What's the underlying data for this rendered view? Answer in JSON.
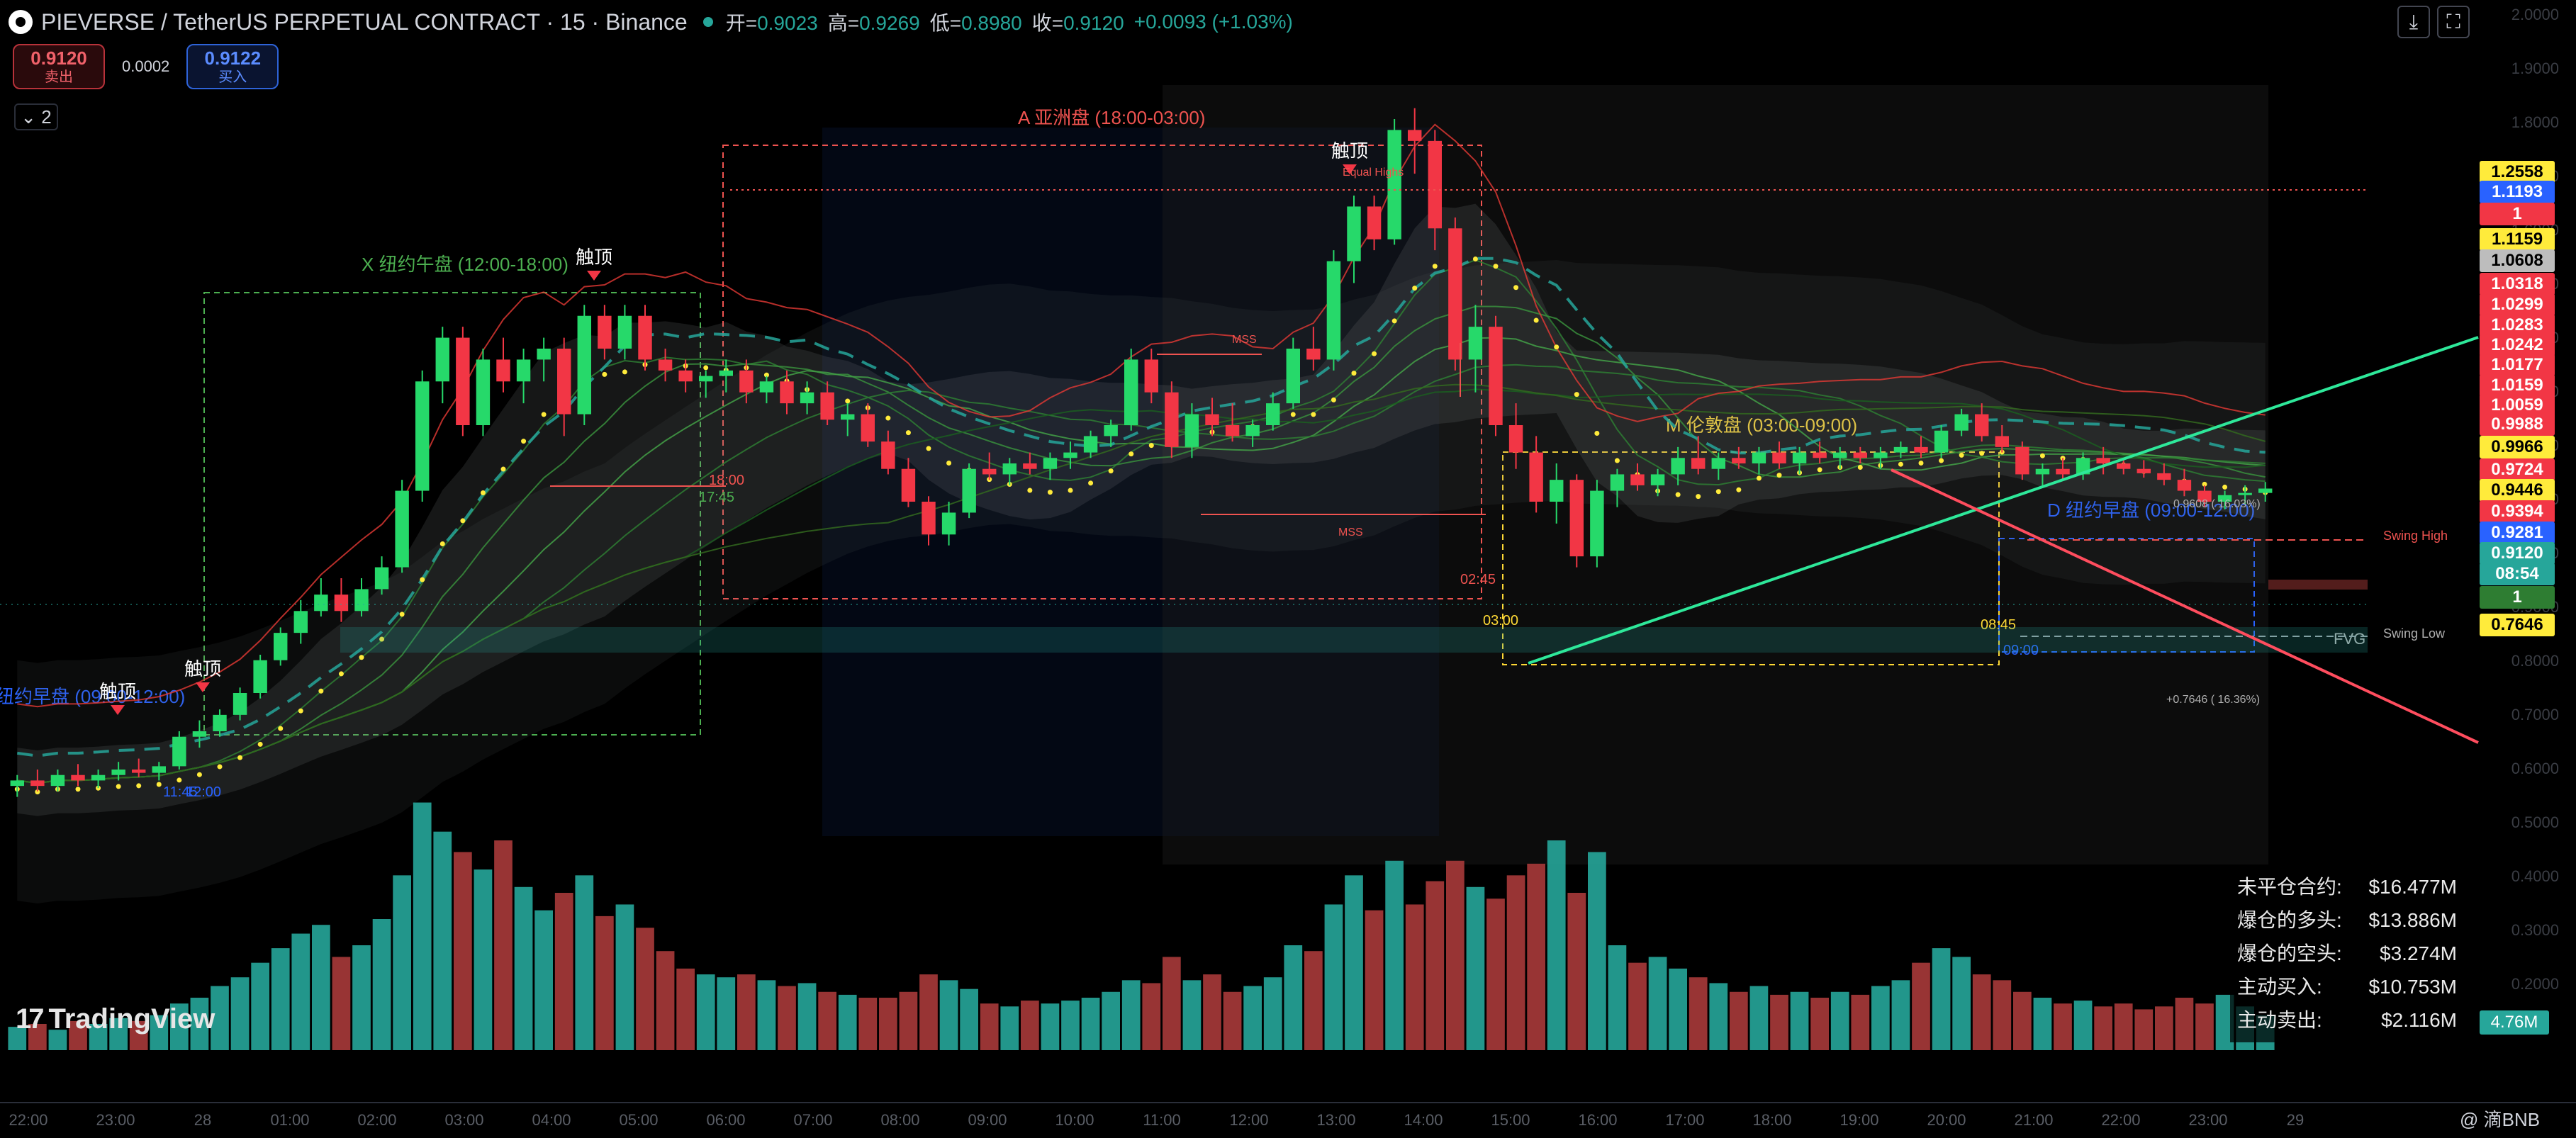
{
  "header": {
    "symbol": "PIEVERSE / TetherUS PERPETUAL CONTRACT · 15 · Binance",
    "open_label": "开=",
    "open": "0.9023",
    "high_label": "高=",
    "high": "0.9269",
    "low_label": "低=",
    "low": "0.8980",
    "close_label": "收=",
    "close": "0.9120",
    "change": "+0.0093 (+1.03%)"
  },
  "trade": {
    "sell_price": "0.9120",
    "sell_label": "卖出",
    "spread": "0.0002",
    "buy_price": "0.9122",
    "buy_label": "买入",
    "collapse_label": "⌄ 2"
  },
  "toolbar": {
    "download_icon": "download-icon",
    "fullscreen_icon": "fullscreen-icon"
  },
  "sessions": [
    {
      "label": "X 纽约午盘 (12:00-18:00)",
      "color": "#4caf50"
    },
    {
      "label": "A 亚洲盘 (18:00-03:00)",
      "color": "#ef5350"
    },
    {
      "label": "M 伦敦盘 (03:00-09:00)",
      "color": "#fdd835"
    },
    {
      "label": "D 纽约早盘 (09:00-12:00)",
      "color": "#2962ff"
    },
    {
      "label": "纽约早盘 (09:00-12:00)",
      "color": "#2962ff"
    }
  ],
  "annotations": {
    "top_marker": "触顶",
    "equal_highs": "Equal Highs",
    "mss": "MSS",
    "swing_high": "Swing High",
    "swing_low": "Swing Low",
    "fvg": "FVG",
    "fib_upper": "0.9608 ( 16.03%)",
    "fib_lower": "+0.7646 ( 16.36%)",
    "time_tags": [
      "11:45",
      "12:00",
      "18:00",
      "17:45",
      "02:45",
      "03:00",
      "08:45",
      "09:00"
    ]
  },
  "price_badges": [
    {
      "text": "1.2558",
      "bg": "#ffeb3b",
      "fg": "#000"
    },
    {
      "text": "1.1193",
      "bg": "#2962ff",
      "fg": "#fff"
    },
    {
      "text": "1",
      "bg": "#f23645",
      "fg": "#fff"
    },
    {
      "text": "1.1159",
      "bg": "#ffeb3b",
      "fg": "#000"
    },
    {
      "text": "1.0608",
      "bg": "#bdbdbd",
      "fg": "#000"
    },
    {
      "text": "1.0318",
      "bg": "#f23645",
      "fg": "#fff"
    },
    {
      "text": "1.0299",
      "bg": "#f23645",
      "fg": "#fff"
    },
    {
      "text": "1.0283",
      "bg": "#f23645",
      "fg": "#fff"
    },
    {
      "text": "1.0242",
      "bg": "#f23645",
      "fg": "#fff"
    },
    {
      "text": "1.0177",
      "bg": "#f23645",
      "fg": "#fff"
    },
    {
      "text": "1.0159",
      "bg": "#f23645",
      "fg": "#fff"
    },
    {
      "text": "1.0059",
      "bg": "#f23645",
      "fg": "#fff"
    },
    {
      "text": "0.9988",
      "bg": "#f23645",
      "fg": "#fff"
    },
    {
      "text": "0.9966",
      "bg": "#ffeb3b",
      "fg": "#000"
    },
    {
      "text": "0.9724",
      "bg": "#f23645",
      "fg": "#fff"
    },
    {
      "text": "0.9446",
      "bg": "#ffeb3b",
      "fg": "#000"
    },
    {
      "text": "0.9394",
      "bg": "#f23645",
      "fg": "#fff"
    },
    {
      "text": "0.9281",
      "bg": "#2962ff",
      "fg": "#fff"
    },
    {
      "text": "0.9120",
      "bg": "#26a69a",
      "fg": "#fff"
    },
    {
      "text": "08:54",
      "bg": "#26a69a",
      "fg": "#fff"
    },
    {
      "text": "1",
      "bg": "#2e7d32",
      "fg": "#fff"
    },
    {
      "text": "0.7646",
      "bg": "#ffeb3b",
      "fg": "#000"
    }
  ],
  "info_box": [
    {
      "label": "未平仓合约:",
      "value": "$16.477M"
    },
    {
      "label": "爆仓的多头:",
      "value": "$13.886M"
    },
    {
      "label": "爆仓的空头:",
      "value": "$3.274M"
    },
    {
      "label": "主动买入:",
      "value": "$10.753M"
    },
    {
      "label": "主动卖出:",
      "value": "$2.116M"
    }
  ],
  "volume_badge": "4.76M",
  "branding": {
    "logo_text": "TradingView",
    "watermark": "@ 滴BNB"
  },
  "chart_data": {
    "type": "candlestick",
    "title": "PIEVERSE / TetherUS PERPETUAL CONTRACT · 15 · Binance",
    "price_range": [
      0.62,
      1.32
    ],
    "colors": {
      "up": "#26d96a",
      "up_dim": "#26a69a",
      "down": "#f23645",
      "vol_up": "#26a69a",
      "vol_down": "#a83a3a"
    },
    "candles": [
      [
        0.64,
        0.65,
        0.63,
        0.645
      ],
      [
        0.645,
        0.655,
        0.635,
        0.64
      ],
      [
        0.64,
        0.655,
        0.635,
        0.65
      ],
      [
        0.65,
        0.66,
        0.64,
        0.645
      ],
      [
        0.645,
        0.655,
        0.638,
        0.65
      ],
      [
        0.65,
        0.662,
        0.645,
        0.655
      ],
      [
        0.655,
        0.665,
        0.648,
        0.652
      ],
      [
        0.652,
        0.662,
        0.645,
        0.658
      ],
      [
        0.658,
        0.69,
        0.655,
        0.685
      ],
      [
        0.685,
        0.7,
        0.675,
        0.69
      ],
      [
        0.69,
        0.71,
        0.685,
        0.705
      ],
      [
        0.705,
        0.73,
        0.7,
        0.725
      ],
      [
        0.725,
        0.76,
        0.72,
        0.755
      ],
      [
        0.755,
        0.785,
        0.75,
        0.78
      ],
      [
        0.78,
        0.81,
        0.77,
        0.8
      ],
      [
        0.8,
        0.83,
        0.795,
        0.815
      ],
      [
        0.815,
        0.83,
        0.79,
        0.8
      ],
      [
        0.8,
        0.83,
        0.795,
        0.82
      ],
      [
        0.82,
        0.85,
        0.815,
        0.84
      ],
      [
        0.84,
        0.92,
        0.835,
        0.91
      ],
      [
        0.91,
        1.02,
        0.9,
        1.01
      ],
      [
        1.01,
        1.06,
        0.99,
        1.05
      ],
      [
        1.05,
        1.06,
        0.96,
        0.97
      ],
      [
        0.97,
        1.04,
        0.96,
        1.03
      ],
      [
        1.03,
        1.05,
        1.0,
        1.01
      ],
      [
        1.01,
        1.04,
        0.99,
        1.03
      ],
      [
        1.03,
        1.05,
        1.01,
        1.04
      ],
      [
        1.04,
        1.05,
        0.96,
        0.98
      ],
      [
        0.98,
        1.08,
        0.97,
        1.07
      ],
      [
        1.07,
        1.08,
        1.03,
        1.04
      ],
      [
        1.04,
        1.08,
        1.03,
        1.07
      ],
      [
        1.07,
        1.08,
        1.02,
        1.03
      ],
      [
        1.03,
        1.04,
        1.01,
        1.02
      ],
      [
        1.02,
        1.03,
        1.0,
        1.01
      ],
      [
        1.01,
        1.02,
        0.995,
        1.015
      ],
      [
        1.015,
        1.03,
        1.0,
        1.02
      ],
      [
        1.02,
        1.03,
        0.99,
        1.0
      ],
      [
        1.0,
        1.015,
        0.99,
        1.01
      ],
      [
        1.01,
        1.02,
        0.98,
        0.99
      ],
      [
        0.99,
        1.01,
        0.98,
        1.0
      ],
      [
        1.0,
        1.01,
        0.97,
        0.975
      ],
      [
        0.975,
        0.99,
        0.96,
        0.98
      ],
      [
        0.98,
        0.99,
        0.95,
        0.955
      ],
      [
        0.955,
        0.965,
        0.925,
        0.93
      ],
      [
        0.93,
        0.94,
        0.895,
        0.9
      ],
      [
        0.9,
        0.905,
        0.86,
        0.87
      ],
      [
        0.87,
        0.9,
        0.86,
        0.89
      ],
      [
        0.89,
        0.935,
        0.885,
        0.93
      ],
      [
        0.93,
        0.945,
        0.92,
        0.925
      ],
      [
        0.925,
        0.94,
        0.915,
        0.935
      ],
      [
        0.935,
        0.945,
        0.925,
        0.93
      ],
      [
        0.93,
        0.945,
        0.92,
        0.94
      ],
      [
        0.94,
        0.955,
        0.93,
        0.945
      ],
      [
        0.945,
        0.965,
        0.94,
        0.96
      ],
      [
        0.96,
        0.975,
        0.95,
        0.97
      ],
      [
        0.97,
        1.04,
        0.965,
        1.03
      ],
      [
        1.03,
        1.04,
        0.99,
        1.0
      ],
      [
        1.0,
        1.01,
        0.94,
        0.95
      ],
      [
        0.95,
        0.99,
        0.94,
        0.98
      ],
      [
        0.98,
        0.995,
        0.96,
        0.97
      ],
      [
        0.97,
        0.99,
        0.955,
        0.96
      ],
      [
        0.96,
        0.975,
        0.95,
        0.97
      ],
      [
        0.97,
        1.0,
        0.965,
        0.99
      ],
      [
        0.99,
        1.05,
        0.985,
        1.04
      ],
      [
        1.04,
        1.06,
        1.02,
        1.03
      ],
      [
        1.03,
        1.13,
        1.02,
        1.12
      ],
      [
        1.12,
        1.18,
        1.1,
        1.17
      ],
      [
        1.17,
        1.18,
        1.13,
        1.14
      ],
      [
        1.14,
        1.25,
        1.135,
        1.24
      ],
      [
        1.24,
        1.26,
        1.2,
        1.23
      ],
      [
        1.23,
        1.24,
        1.13,
        1.15
      ],
      [
        1.15,
        1.16,
        1.02,
        1.03
      ],
      [
        1.03,
        1.08,
        1.0,
        1.06
      ],
      [
        1.06,
        1.07,
        0.96,
        0.97
      ],
      [
        0.97,
        0.99,
        0.93,
        0.945
      ],
      [
        0.945,
        0.96,
        0.89,
        0.9
      ],
      [
        0.9,
        0.935,
        0.88,
        0.92
      ],
      [
        0.92,
        0.925,
        0.84,
        0.85
      ],
      [
        0.85,
        0.92,
        0.84,
        0.91
      ],
      [
        0.91,
        0.93,
        0.895,
        0.925
      ],
      [
        0.925,
        0.935,
        0.91,
        0.915
      ],
      [
        0.915,
        0.93,
        0.905,
        0.925
      ],
      [
        0.925,
        0.95,
        0.915,
        0.94
      ],
      [
        0.94,
        0.96,
        0.925,
        0.93
      ],
      [
        0.93,
        0.945,
        0.92,
        0.94
      ],
      [
        0.94,
        0.95,
        0.93,
        0.935
      ],
      [
        0.935,
        0.95,
        0.925,
        0.945
      ],
      [
        0.945,
        0.955,
        0.93,
        0.935
      ],
      [
        0.935,
        0.95,
        0.925,
        0.945
      ],
      [
        0.945,
        0.955,
        0.935,
        0.94
      ],
      [
        0.94,
        0.95,
        0.93,
        0.945
      ],
      [
        0.945,
        0.95,
        0.935,
        0.94
      ],
      [
        0.94,
        0.95,
        0.93,
        0.945
      ],
      [
        0.945,
        0.955,
        0.94,
        0.95
      ],
      [
        0.95,
        0.96,
        0.94,
        0.945
      ],
      [
        0.945,
        0.97,
        0.94,
        0.965
      ],
      [
        0.965,
        0.985,
        0.96,
        0.98
      ],
      [
        0.98,
        0.99,
        0.955,
        0.96
      ],
      [
        0.96,
        0.97,
        0.945,
        0.95
      ],
      [
        0.95,
        0.955,
        0.92,
        0.925
      ],
      [
        0.925,
        0.935,
        0.915,
        0.93
      ],
      [
        0.93,
        0.94,
        0.92,
        0.925
      ],
      [
        0.925,
        0.945,
        0.92,
        0.94
      ],
      [
        0.94,
        0.95,
        0.925,
        0.935
      ],
      [
        0.935,
        0.94,
        0.925,
        0.93
      ],
      [
        0.93,
        0.938,
        0.922,
        0.926
      ],
      [
        0.926,
        0.935,
        0.915,
        0.92
      ],
      [
        0.92,
        0.93,
        0.905,
        0.91
      ],
      [
        0.91,
        0.915,
        0.895,
        0.9
      ],
      [
        0.9,
        0.91,
        0.893,
        0.906
      ],
      [
        0.906,
        0.915,
        0.898,
        0.908
      ],
      [
        0.908,
        0.918,
        0.9,
        0.912
      ]
    ],
    "volume": [
      0.8,
      0.9,
      0.7,
      1.0,
      0.9,
      1.1,
      1.0,
      1.2,
      1.6,
      1.8,
      2.2,
      2.5,
      3.0,
      3.5,
      4.0,
      4.3,
      3.2,
      3.6,
      4.5,
      6.0,
      8.5,
      7.5,
      6.8,
      6.2,
      7.2,
      5.6,
      4.8,
      5.4,
      6.0,
      4.6,
      5.0,
      4.2,
      3.4,
      2.8,
      2.6,
      2.5,
      2.6,
      2.4,
      2.2,
      2.3,
      2.0,
      1.9,
      1.8,
      1.8,
      2.0,
      2.6,
      2.4,
      2.1,
      1.6,
      1.5,
      1.7,
      1.6,
      1.7,
      1.8,
      2.0,
      2.4,
      2.3,
      3.2,
      2.4,
      2.6,
      2.0,
      2.2,
      2.5,
      3.6,
      3.4,
      5.0,
      6.0,
      4.8,
      6.5,
      5.0,
      5.8,
      6.5,
      5.6,
      5.2,
      6.0,
      6.4,
      7.2,
      5.4,
      6.8,
      3.6,
      3.0,
      3.2,
      2.8,
      2.5,
      2.3,
      2.0,
      2.2,
      1.9,
      2.0,
      1.8,
      2.0,
      1.9,
      2.2,
      2.4,
      3.0,
      3.5,
      3.2,
      2.6,
      2.4,
      2.0,
      1.8,
      1.6,
      1.7,
      1.5,
      1.6,
      1.4,
      1.5,
      1.8,
      1.6,
      1.9,
      1.5,
      1.2
    ],
    "volume_max": 9.0,
    "x_labels": [
      "22:00",
      "23:00",
      "28",
      "01:00",
      "02:00",
      "03:00",
      "04:00",
      "05:00",
      "06:00",
      "07:00",
      "08:00",
      "09:00",
      "10:00",
      "11:00",
      "12:00",
      "13:00",
      "14:00",
      "15:00",
      "16:00",
      "17:00",
      "18:00",
      "19:00",
      "20:00",
      "21:00",
      "22:00",
      "23:00",
      "29"
    ],
    "y_labels": [
      "2.0000",
      "1.9000",
      "1.8000",
      "1.7000",
      "1.6000",
      "1.5000",
      "1.4000",
      "1.3000",
      "1.2000",
      "1.1000",
      "1.0000",
      "0.9000",
      "0.8000",
      "0.7000",
      "0.6000",
      "0.5000",
      "0.4000",
      "0.3000",
      "0.2000"
    ]
  }
}
